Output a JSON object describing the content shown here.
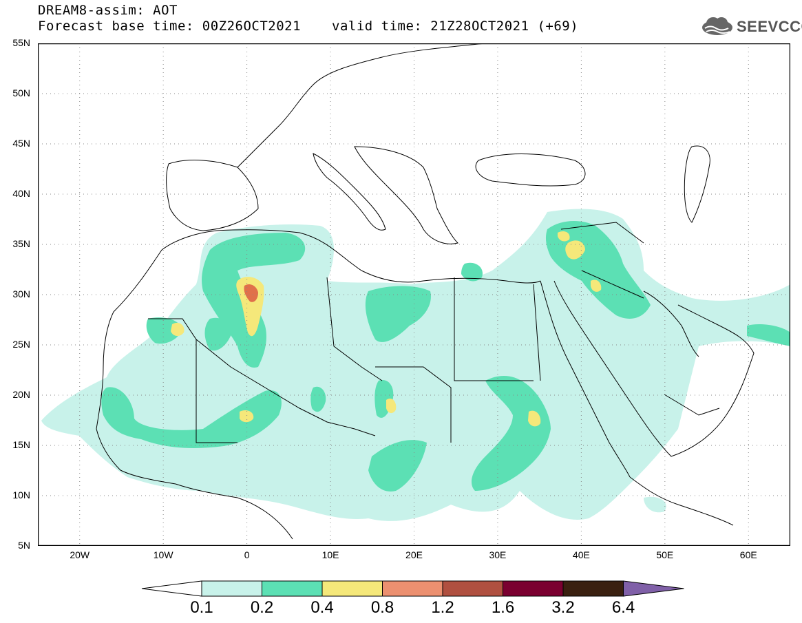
{
  "header": {
    "model_line": "DREAM8-assim: AOT",
    "base_time": "Forecast base time: 00Z26OCT2021",
    "valid_time": "valid time: 21Z28OCT2021 (+69)"
  },
  "logo": {
    "text": "SEEVCCC",
    "icon": "cloud-logo-icon"
  },
  "map": {
    "lat_labels": [
      "55N",
      "50N",
      "45N",
      "40N",
      "35N",
      "30N",
      "25N",
      "20N",
      "15N",
      "10N",
      "5N"
    ],
    "lon_labels": [
      "20W",
      "10W",
      "0",
      "10E",
      "20E",
      "30E",
      "40E",
      "50E",
      "60E"
    ],
    "grid": true
  },
  "colorbar": {
    "labels": [
      "0.1",
      "0.2",
      "0.4",
      "0.8",
      "1.2",
      "1.6",
      "3.2",
      "6.4"
    ],
    "colors": [
      "#ffffff",
      "#c8f2ea",
      "#5ce0b4",
      "#f5e87a",
      "#ec9070",
      "#b05040",
      "#7a0030",
      "#3a2010",
      "#8060a8"
    ]
  },
  "chart_data": {
    "type": "heatmap",
    "variable": "AOT",
    "lon_range": [
      -25,
      65
    ],
    "lat_range": [
      5,
      55
    ],
    "levels": [
      0.1,
      0.2,
      0.4,
      0.8,
      1.2,
      1.6,
      3.2,
      6.4
    ]
  }
}
